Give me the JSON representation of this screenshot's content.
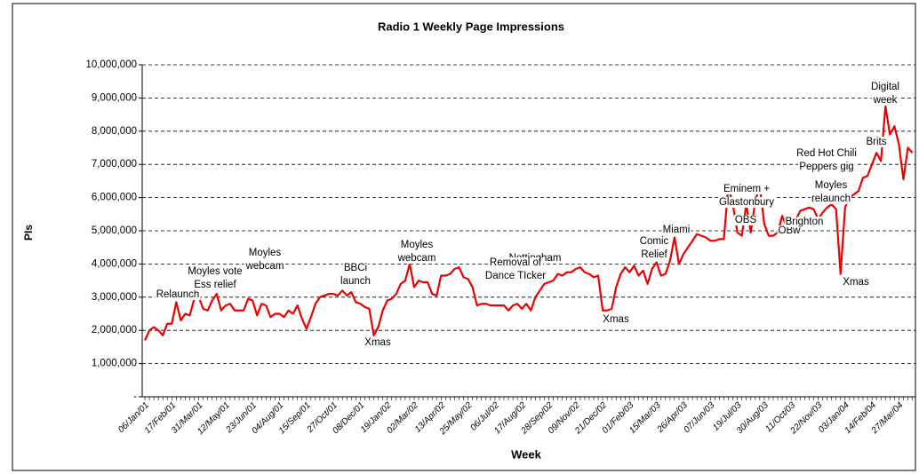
{
  "chart_data": {
    "type": "line",
    "title": "Radio 1 Weekly Page Impressions",
    "x_label": "Week",
    "y_label": "PIs",
    "categories": [
      "06/Jan/01",
      null,
      null,
      null,
      null,
      null,
      "17/Feb/01",
      null,
      null,
      null,
      null,
      null,
      "31/Mar/01",
      null,
      null,
      null,
      null,
      null,
      "12/May/01",
      null,
      null,
      null,
      null,
      null,
      "23/Jun/01",
      null,
      null,
      null,
      null,
      null,
      "04/Aug/01",
      null,
      null,
      null,
      null,
      null,
      "15/Sep/01",
      null,
      null,
      null,
      null,
      null,
      "27/Oct/01",
      null,
      null,
      null,
      null,
      null,
      "08/Dec/01",
      null,
      null,
      null,
      null,
      null,
      "19/Jan/02",
      null,
      null,
      null,
      null,
      null,
      "02/Mar/02",
      null,
      null,
      null,
      null,
      null,
      "13/Apr/02",
      null,
      null,
      null,
      null,
      null,
      "25/May/02",
      null,
      null,
      null,
      null,
      null,
      "06/Jul/02",
      null,
      null,
      null,
      null,
      null,
      "17/Aug/02",
      null,
      null,
      null,
      null,
      null,
      "28/Sep/02",
      null,
      null,
      null,
      null,
      null,
      "09/Nov/02",
      null,
      null,
      null,
      null,
      null,
      "21/Dec/02",
      null,
      null,
      null,
      null,
      null,
      "01/Feb/03",
      null,
      null,
      null,
      null,
      null,
      "15/Mar/03",
      null,
      null,
      null,
      null,
      null,
      "26/Apr/03",
      null,
      null,
      null,
      null,
      null,
      "07/Jun/03",
      null,
      null,
      null,
      null,
      null,
      "19/Jul/03",
      null,
      null,
      null,
      null,
      null,
      "30/Aug/03",
      null,
      null,
      null,
      null,
      null,
      "11/Oct/03",
      null,
      null,
      null,
      null,
      null,
      "22/Nov/03",
      null,
      null,
      null,
      null,
      null,
      "03/Jan/04",
      null,
      null,
      null,
      null,
      null,
      "14/Feb/04",
      null,
      null,
      null,
      null,
      null,
      "27/Mar/04",
      null,
      null,
      null
    ],
    "values": [
      1700000,
      2000000,
      2100000,
      2000000,
      1850000,
      2200000,
      2200000,
      2850000,
      2300000,
      2500000,
      2450000,
      2950000,
      3000000,
      2650000,
      2600000,
      2900000,
      3100000,
      2600000,
      2750000,
      2800000,
      2600000,
      2600000,
      2600000,
      2950000,
      2900000,
      2450000,
      2800000,
      2750000,
      2400000,
      2500000,
      2500000,
      2400000,
      2600000,
      2500000,
      2750000,
      2350000,
      2050000,
      2400000,
      2800000,
      3000000,
      3050000,
      3100000,
      3100000,
      3050000,
      3200000,
      3050000,
      3150000,
      2850000,
      2800000,
      2700000,
      2650000,
      1850000,
      2100000,
      2600000,
      2900000,
      2950000,
      3100000,
      3400000,
      3500000,
      4000000,
      3300000,
      3500000,
      3450000,
      3450000,
      3100000,
      3050000,
      3650000,
      3650000,
      3700000,
      3850000,
      3900000,
      3600000,
      3550000,
      3300000,
      2750000,
      2800000,
      2800000,
      2750000,
      2750000,
      2750000,
      2750000,
      2600000,
      2750000,
      2800000,
      2650000,
      2800000,
      2600000,
      3000000,
      3200000,
      3400000,
      3450000,
      3500000,
      3700000,
      3650000,
      3750000,
      3750000,
      3850000,
      3900000,
      3750000,
      3700000,
      3600000,
      3650000,
      2600000,
      2600000,
      2650000,
      3300000,
      3700000,
      3900000,
      3750000,
      3950000,
      3650000,
      3800000,
      3400000,
      3850000,
      4050000,
      3650000,
      3700000,
      4100000,
      4800000,
      4000000,
      4300000,
      4500000,
      4700000,
      4900000,
      4850000,
      4800000,
      4700000,
      4700000,
      4750000,
      4750000,
      6350000,
      5800000,
      4950000,
      4850000,
      5800000,
      4950000,
      5900000,
      6350000,
      5200000,
      4850000,
      4850000,
      4950000,
      5450000,
      5100000,
      4950000,
      5300000,
      5600000,
      5650000,
      5700000,
      5650000,
      5350000,
      5550000,
      5700000,
      5800000,
      5650000,
      3700000,
      5700000,
      6000000,
      6100000,
      6200000,
      6600000,
      6650000,
      7000000,
      7350000,
      7100000,
      8750000,
      7900000,
      8150000,
      7600000,
      6550000,
      7500000,
      7350000
    ],
    "color": "#ee0000",
    "ylim": [
      0,
      10000000
    ],
    "yticks": [
      {
        "value": 0,
        "label": "-"
      },
      {
        "value": 1000000,
        "label": "1,000,000"
      },
      {
        "value": 2000000,
        "label": "2,000,000"
      },
      {
        "value": 3000000,
        "label": "3,000,000"
      },
      {
        "value": 4000000,
        "label": "4,000,000"
      },
      {
        "value": 5000000,
        "label": "5,000,000"
      },
      {
        "value": 6000000,
        "label": "6,000,000"
      },
      {
        "value": 7000000,
        "label": "7,000,000"
      },
      {
        "value": 8000000,
        "label": "8,000,000"
      },
      {
        "value": 9000000,
        "label": "9,000,000"
      },
      {
        "value": 10000000,
        "label": "10,000,000"
      }
    ],
    "grid": true,
    "annotations": [
      [
        "Relaunch"
      ],
      [
        "Moyles vote",
        "Ess relief"
      ],
      [
        "Moyles",
        "webcam"
      ],
      [
        "BBCi",
        "launch"
      ],
      [
        "Xmas"
      ],
      [
        "Moyles",
        "webcam"
      ],
      [
        "Nottingham"
      ],
      [
        "Removal of",
        "Dance TIcker"
      ],
      [
        "Xmas"
      ],
      [
        "Comic",
        "Relief"
      ],
      [
        "Miami"
      ],
      [
        "Eminem +",
        "Glastonbury"
      ],
      [
        "OBS"
      ],
      [
        "OBw"
      ],
      [
        "Brighton"
      ],
      [
        "Red Hot Chili",
        "Peppers gig"
      ],
      [
        "Moyles",
        "relaunch"
      ],
      [
        "Xmas"
      ],
      [
        "Brits"
      ],
      [
        "Digital",
        "week"
      ]
    ]
  }
}
